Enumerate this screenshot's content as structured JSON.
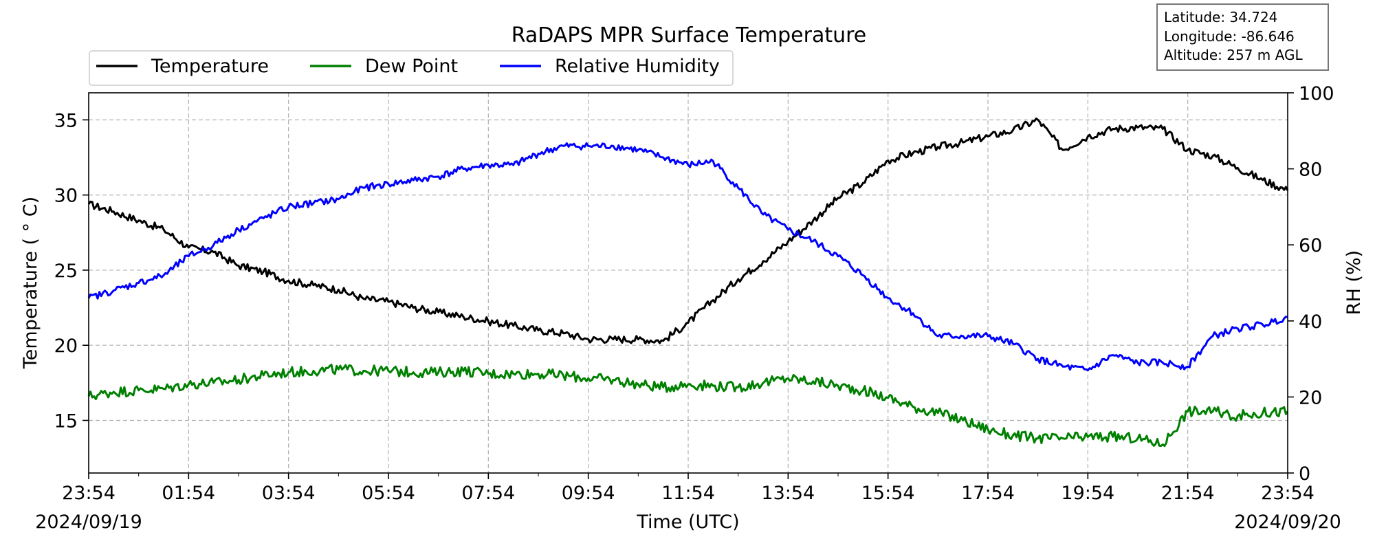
{
  "chart_data": {
    "type": "line",
    "title": "RaDAPS MPR Surface Temperature",
    "xlabel": "Time (UTC)",
    "ylabel_left": "Temperature ( ° C)",
    "ylabel_right": "RH (%)",
    "x_tick_labels": [
      "23:54",
      "01:54",
      "03:54",
      "05:54",
      "07:54",
      "09:54",
      "11:54",
      "13:54",
      "15:54",
      "17:54",
      "19:54",
      "21:54",
      "23:54"
    ],
    "x_range_hours": [
      0,
      24
    ],
    "start_date": "2024/09/19",
    "end_date": "2024/09/20",
    "ylim_left": [
      11.5,
      36.8
    ],
    "yticks_left": [
      15,
      20,
      25,
      30,
      35
    ],
    "ylim_right": [
      0,
      100
    ],
    "yticks_right": [
      0,
      20,
      40,
      60,
      80,
      100
    ],
    "grid": true,
    "legend_position": "top-left, above plot",
    "info_box": {
      "latitude": "Latitude: 34.724",
      "longitude": "Longitude: -86.646",
      "altitude": "Altitude: 257 m AGL"
    },
    "series": [
      {
        "name": "Temperature",
        "axis": "left",
        "color": "#000000",
        "x": [
          0,
          0.5,
          1,
          1.5,
          2,
          2.5,
          3,
          3.5,
          4,
          4.5,
          5,
          5.5,
          6,
          6.5,
          7,
          7.5,
          8,
          8.5,
          9,
          9.5,
          10,
          10.5,
          11,
          11.5,
          12,
          12.5,
          13,
          13.5,
          14,
          14.5,
          15,
          15.5,
          16,
          16.5,
          17,
          17.5,
          18,
          18.5,
          19,
          19.5,
          20,
          20.5,
          21,
          21.5,
          22,
          22.5,
          23,
          23.5,
          24
        ],
        "values": [
          29.4,
          28.9,
          28.3,
          27.7,
          26.5,
          26.2,
          25.3,
          24.9,
          24.3,
          24.0,
          23.7,
          23.1,
          22.9,
          22.5,
          22.2,
          21.9,
          21.6,
          21.3,
          21.0,
          20.8,
          20.4,
          20.4,
          20.4,
          20.3,
          21.5,
          23.0,
          24.4,
          25.6,
          26.9,
          28.3,
          29.8,
          30.8,
          32.3,
          32.8,
          33.2,
          33.5,
          33.9,
          34.3,
          35.0,
          33.0,
          33.9,
          34.4,
          34.5,
          34.4,
          33.0,
          32.6,
          31.8,
          31.0,
          30.3
        ]
      },
      {
        "name": "Dew Point",
        "axis": "left",
        "color": "#008000",
        "x": [
          0,
          0.5,
          1,
          1.5,
          2,
          2.5,
          3,
          3.5,
          4,
          4.5,
          5,
          5.5,
          6,
          6.5,
          7,
          7.5,
          8,
          8.5,
          9,
          9.5,
          10,
          10.5,
          11,
          11.5,
          12,
          12.5,
          13,
          13.5,
          14,
          14.5,
          15,
          15.5,
          16,
          16.5,
          17,
          17.5,
          18,
          18.5,
          19,
          19.5,
          20,
          20.5,
          21,
          21.5,
          22,
          22.5,
          23,
          23.5,
          24
        ],
        "values": [
          16.6,
          16.9,
          17.0,
          17.1,
          17.4,
          17.5,
          17.7,
          18.0,
          18.2,
          18.3,
          18.4,
          18.3,
          18.3,
          18.2,
          18.2,
          18.3,
          18.1,
          18.1,
          18.1,
          18.0,
          17.8,
          17.7,
          17.4,
          17.2,
          17.4,
          17.3,
          17.2,
          17.5,
          17.8,
          17.6,
          17.3,
          17.0,
          16.5,
          15.9,
          15.5,
          15.0,
          14.4,
          14.0,
          13.8,
          13.8,
          13.9,
          13.9,
          13.8,
          13.4,
          15.6,
          15.6,
          15.3,
          15.5,
          15.6
        ]
      },
      {
        "name": "Relative Humidity",
        "axis": "right",
        "color": "#0000ff",
        "x": [
          0,
          0.5,
          1,
          1.5,
          2,
          2.5,
          3,
          3.5,
          4,
          4.5,
          5,
          5.5,
          6,
          6.5,
          7,
          7.5,
          8,
          8.5,
          9,
          9.5,
          10,
          10.5,
          11,
          11.5,
          12,
          12.5,
          13,
          13.5,
          14,
          14.5,
          15,
          15.5,
          16,
          16.5,
          17,
          17.5,
          18,
          18.5,
          19,
          19.5,
          20,
          20.5,
          21,
          21.5,
          22,
          22.5,
          23,
          23.5,
          24
        ],
        "values": [
          46,
          48,
          50,
          52,
          57,
          60,
          64,
          67,
          70,
          71,
          72,
          75,
          76,
          77,
          78,
          80,
          81,
          81,
          84,
          86,
          86,
          86,
          85,
          83,
          81,
          82,
          75,
          68,
          64,
          61,
          57,
          52,
          46,
          42,
          36,
          36,
          36,
          34,
          30,
          28,
          27,
          31,
          29,
          29,
          28,
          36,
          38,
          39,
          41
        ]
      }
    ]
  }
}
